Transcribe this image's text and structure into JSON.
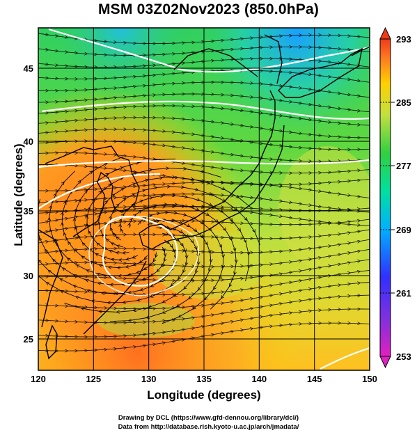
{
  "title": "MSM 03Z02Nov2023 (850.0hPa)",
  "map": {
    "xlabel": "Longitude (degrees)",
    "ylabel": "Latitude  (degrees)",
    "lon_range": [
      120,
      150
    ],
    "lat_range": [
      22.4,
      47.6
    ],
    "lon_ticks": [
      "120",
      "125",
      "130",
      "135",
      "140",
      "145",
      "150"
    ],
    "lat_ticks": [
      "25",
      "30",
      "35",
      "40",
      "45"
    ],
    "grid": true,
    "field": "temperature shading with streamlines and white contour lines"
  },
  "colorbar": {
    "ticks": [
      "293",
      "285",
      "277",
      "269",
      "261",
      "253"
    ],
    "range": [
      253,
      293
    ],
    "colors": [
      "#e020c0",
      "#3030ff",
      "#00b0ff",
      "#00e0a0",
      "#30d040",
      "#c0e040",
      "#ffd000",
      "#ff7a20",
      "#f03a1a"
    ]
  },
  "credits": {
    "line1": "Drawing by DCL (https://www.gfd-dennou.org/library/dcl/)",
    "line2": "Data from http://database.rish.kyoto-u.ac.jp/arch/jmadata/"
  }
}
